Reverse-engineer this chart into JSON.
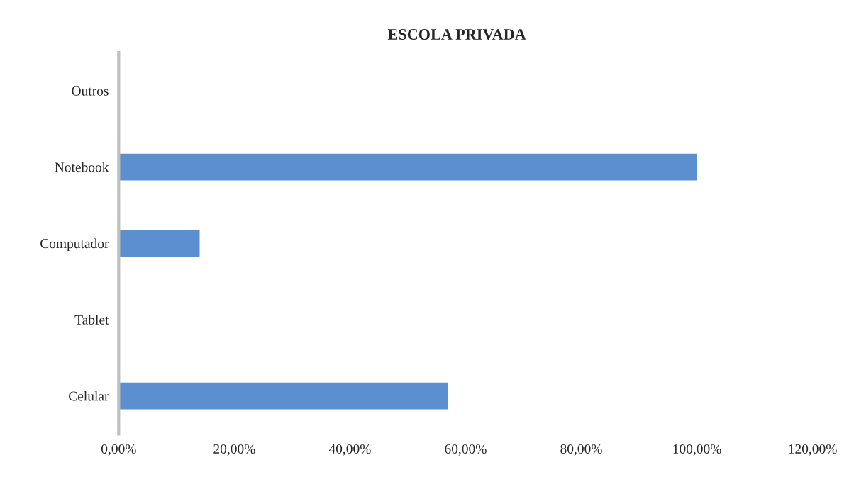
{
  "chart_data": {
    "type": "bar",
    "orientation": "horizontal",
    "title": "ESCOLA PRIVADA",
    "categories": [
      "Outros",
      "Notebook",
      "Computador",
      "Tablet",
      "Celular"
    ],
    "values": [
      0,
      100,
      14,
      0,
      57
    ],
    "color": "#5b8fd0",
    "xlim": [
      0,
      120
    ],
    "xticks": [
      {
        "value": 0,
        "label": "0,00%"
      },
      {
        "value": 20,
        "label": "20,00%"
      },
      {
        "value": 40,
        "label": "40,00%"
      },
      {
        "value": 60,
        "label": "60,00%"
      },
      {
        "value": 80,
        "label": "80,00%"
      },
      {
        "value": 100,
        "label": "100,00%"
      },
      {
        "value": 120,
        "label": "120,00%"
      }
    ],
    "grid": false,
    "legend": false
  }
}
